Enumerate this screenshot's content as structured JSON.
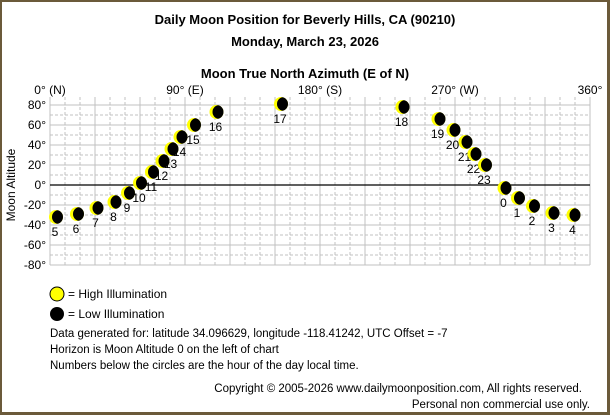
{
  "header": {
    "title": "Daily Moon Position for Beverly Hills, CA (90210)",
    "date": "Monday, March 23, 2026"
  },
  "chart_data": {
    "type": "scatter",
    "title": "Moon True North Azimuth (E of N)",
    "xlabel": "Moon True North Azimuth (E of N)",
    "ylabel": "Moon Altitude",
    "xlim": [
      0,
      360
    ],
    "ylim": [
      -80,
      80
    ],
    "x_ticks": [
      {
        "value": 0,
        "label": "0° (N)"
      },
      {
        "value": 90,
        "label": "90° (E)"
      },
      {
        "value": 180,
        "label": "180° (S)"
      },
      {
        "value": 270,
        "label": "270° (W)"
      },
      {
        "value": 360,
        "label": "360°"
      }
    ],
    "y_ticks": [
      {
        "value": 80,
        "label": "80°"
      },
      {
        "value": 60,
        "label": "60°"
      },
      {
        "value": 40,
        "label": "40°"
      },
      {
        "value": 20,
        "label": "20°"
      },
      {
        "value": 0,
        "label": "0°"
      },
      {
        "value": -20,
        "label": "-20°"
      },
      {
        "value": -40,
        "label": "-40°"
      },
      {
        "value": -60,
        "label": "-60°"
      },
      {
        "value": -80,
        "label": "-80°"
      }
    ],
    "grid": true,
    "horizon_line": 0,
    "points": [
      {
        "hour": "5",
        "azimuth": 4,
        "altitude": -32
      },
      {
        "hour": "6",
        "azimuth": 18,
        "altitude": -29
      },
      {
        "hour": "7",
        "azimuth": 31,
        "altitude": -23
      },
      {
        "hour": "8",
        "azimuth": 43,
        "altitude": -17
      },
      {
        "hour": "9",
        "azimuth": 52,
        "altitude": -8
      },
      {
        "hour": "10",
        "azimuth": 60,
        "altitude": 2
      },
      {
        "hour": "11",
        "azimuth": 68,
        "altitude": 13
      },
      {
        "hour": "12",
        "azimuth": 75,
        "altitude": 24
      },
      {
        "hour": "13",
        "azimuth": 81,
        "altitude": 36
      },
      {
        "hour": "14",
        "azimuth": 87,
        "altitude": 48
      },
      {
        "hour": "15",
        "azimuth": 96,
        "altitude": 60
      },
      {
        "hour": "16",
        "azimuth": 111,
        "altitude": 73
      },
      {
        "hour": "17",
        "azimuth": 154,
        "altitude": 81
      },
      {
        "hour": "18",
        "azimuth": 235,
        "altitude": 78
      },
      {
        "hour": "19",
        "azimuth": 259,
        "altitude": 66
      },
      {
        "hour": "20",
        "azimuth": 269,
        "altitude": 55
      },
      {
        "hour": "21",
        "azimuth": 277,
        "altitude": 43
      },
      {
        "hour": "22",
        "azimuth": 283,
        "altitude": 31
      },
      {
        "hour": "23",
        "azimuth": 290,
        "altitude": 20
      },
      {
        "hour": "0",
        "azimuth": 303,
        "altitude": -3
      },
      {
        "hour": "1",
        "azimuth": 312,
        "altitude": -13
      },
      {
        "hour": "2",
        "azimuth": 322,
        "altitude": -21
      },
      {
        "hour": "3",
        "azimuth": 335,
        "altitude": -28
      },
      {
        "hour": "4",
        "azimuth": 349,
        "altitude": -30
      }
    ],
    "colors": {
      "high": "#ffff00",
      "low": "#000000",
      "grid": "#c0c0c0",
      "border": "#6b5a3a"
    }
  },
  "legend": {
    "high": "= High Illumination",
    "low": "= Low Illumination"
  },
  "notes": [
    "Data generated for: latitude 34.096629, longitude -118.41242, UTC Offset = -7",
    "Horizon is Moon Altitude 0 on the left of chart",
    "Numbers below the circles are the hour of the day local time."
  ],
  "footer": {
    "copyright": "Copyright © 2005-2026 www.dailymoonposition.com, All rights reserved.",
    "usage": "Personal non commercial use only."
  }
}
